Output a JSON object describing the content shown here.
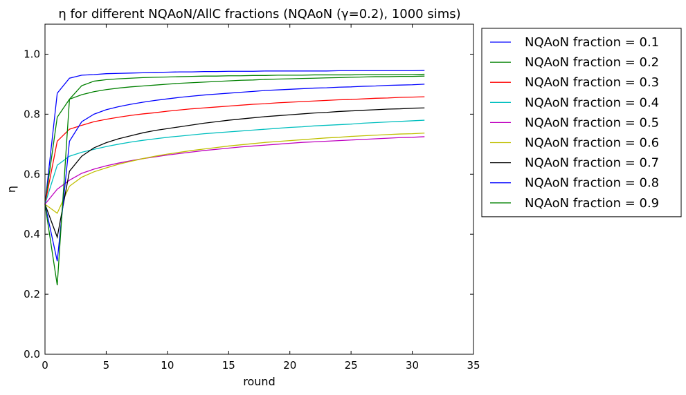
{
  "chart_data": {
    "type": "line",
    "title": "η for different NQAoN/AllC fractions (NQAoN (γ=0.2), 1000 sims)",
    "xlabel": "round",
    "ylabel": "η",
    "xlim": [
      0,
      35
    ],
    "ylim": [
      0.0,
      1.1
    ],
    "xticks": [
      0,
      5,
      10,
      15,
      20,
      25,
      30,
      35
    ],
    "xtick_labels": [
      "0",
      "5",
      "10",
      "15",
      "20",
      "25",
      "30",
      "35"
    ],
    "yticks": [
      0.0,
      0.2,
      0.4,
      0.6,
      0.8,
      1.0
    ],
    "ytick_labels": [
      "0.0",
      "0.2",
      "0.4",
      "0.6",
      "0.8",
      "1.0"
    ],
    "grid": false,
    "legend_position": "outside-right",
    "x": [
      0,
      1,
      2,
      3,
      4,
      5,
      6,
      7,
      8,
      9,
      10,
      11,
      12,
      13,
      14,
      15,
      16,
      17,
      18,
      19,
      20,
      21,
      22,
      23,
      24,
      25,
      26,
      27,
      28,
      29,
      30,
      31
    ],
    "series": [
      {
        "name": "NQAoN fraction = 0.1",
        "color": "#0000ff",
        "values": [
          0.5,
          0.87,
          0.92,
          0.93,
          0.932,
          0.935,
          0.936,
          0.937,
          0.938,
          0.939,
          0.94,
          0.941,
          0.941,
          0.942,
          0.942,
          0.943,
          0.943,
          0.943,
          0.944,
          0.944,
          0.944,
          0.944,
          0.944,
          0.944,
          0.945,
          0.945,
          0.945,
          0.945,
          0.945,
          0.945,
          0.945,
          0.946
        ]
      },
      {
        "name": "NQAoN fraction = 0.2",
        "color": "#008000",
        "values": [
          0.5,
          0.79,
          0.85,
          0.865,
          0.875,
          0.882,
          0.887,
          0.891,
          0.894,
          0.897,
          0.9,
          0.903,
          0.905,
          0.907,
          0.909,
          0.911,
          0.913,
          0.914,
          0.916,
          0.917,
          0.918,
          0.919,
          0.92,
          0.921,
          0.922,
          0.923,
          0.924,
          0.925,
          0.925,
          0.926,
          0.926,
          0.927
        ]
      },
      {
        "name": "NQAoN fraction = 0.3",
        "color": "#ff0000",
        "values": [
          0.5,
          0.71,
          0.75,
          0.763,
          0.775,
          0.783,
          0.79,
          0.796,
          0.801,
          0.805,
          0.81,
          0.814,
          0.818,
          0.821,
          0.824,
          0.827,
          0.83,
          0.833,
          0.835,
          0.838,
          0.84,
          0.842,
          0.844,
          0.846,
          0.848,
          0.849,
          0.851,
          0.853,
          0.854,
          0.856,
          0.857,
          0.858
        ]
      },
      {
        "name": "NQAoN fraction = 0.4",
        "color": "#00bfbf",
        "values": [
          0.5,
          0.63,
          0.66,
          0.673,
          0.683,
          0.692,
          0.7,
          0.707,
          0.713,
          0.718,
          0.723,
          0.727,
          0.731,
          0.735,
          0.738,
          0.741,
          0.744,
          0.747,
          0.75,
          0.753,
          0.756,
          0.758,
          0.761,
          0.763,
          0.765,
          0.767,
          0.77,
          0.772,
          0.774,
          0.776,
          0.778,
          0.78
        ]
      },
      {
        "name": "NQAoN fraction = 0.5",
        "color": "#bf00bf",
        "values": [
          0.5,
          0.55,
          0.58,
          0.603,
          0.617,
          0.628,
          0.637,
          0.645,
          0.652,
          0.658,
          0.664,
          0.669,
          0.674,
          0.679,
          0.683,
          0.687,
          0.691,
          0.694,
          0.697,
          0.7,
          0.703,
          0.706,
          0.708,
          0.71,
          0.712,
          0.714,
          0.716,
          0.718,
          0.72,
          0.722,
          0.723,
          0.725
        ]
      },
      {
        "name": "NQAoN fraction = 0.6",
        "color": "#bfbf00",
        "values": [
          0.5,
          0.47,
          0.56,
          0.59,
          0.608,
          0.621,
          0.633,
          0.643,
          0.652,
          0.66,
          0.667,
          0.673,
          0.679,
          0.684,
          0.689,
          0.694,
          0.698,
          0.702,
          0.706,
          0.709,
          0.712,
          0.715,
          0.718,
          0.721,
          0.723,
          0.726,
          0.728,
          0.73,
          0.732,
          0.734,
          0.735,
          0.737
        ]
      },
      {
        "name": "NQAoN fraction = 0.7",
        "color": "#000000",
        "values": [
          0.5,
          0.39,
          0.61,
          0.66,
          0.688,
          0.705,
          0.718,
          0.728,
          0.738,
          0.746,
          0.752,
          0.758,
          0.764,
          0.77,
          0.775,
          0.78,
          0.784,
          0.788,
          0.792,
          0.795,
          0.798,
          0.801,
          0.804,
          0.806,
          0.809,
          0.811,
          0.813,
          0.815,
          0.817,
          0.818,
          0.82,
          0.821
        ]
      },
      {
        "name": "NQAoN fraction = 0.8",
        "color": "#0000ff",
        "values": [
          0.5,
          0.31,
          0.71,
          0.775,
          0.8,
          0.815,
          0.825,
          0.833,
          0.84,
          0.846,
          0.851,
          0.856,
          0.86,
          0.864,
          0.867,
          0.87,
          0.873,
          0.876,
          0.879,
          0.881,
          0.883,
          0.885,
          0.887,
          0.888,
          0.89,
          0.891,
          0.893,
          0.894,
          0.896,
          0.897,
          0.898,
          0.9
        ]
      },
      {
        "name": "NQAoN fraction = 0.9",
        "color": "#008000",
        "values": [
          0.5,
          0.23,
          0.85,
          0.895,
          0.91,
          0.915,
          0.918,
          0.92,
          0.922,
          0.923,
          0.924,
          0.925,
          0.926,
          0.927,
          0.927,
          0.928,
          0.928,
          0.929,
          0.929,
          0.93,
          0.93,
          0.93,
          0.931,
          0.931,
          0.931,
          0.931,
          0.932,
          0.932,
          0.932,
          0.932,
          0.932,
          0.933
        ]
      }
    ]
  }
}
